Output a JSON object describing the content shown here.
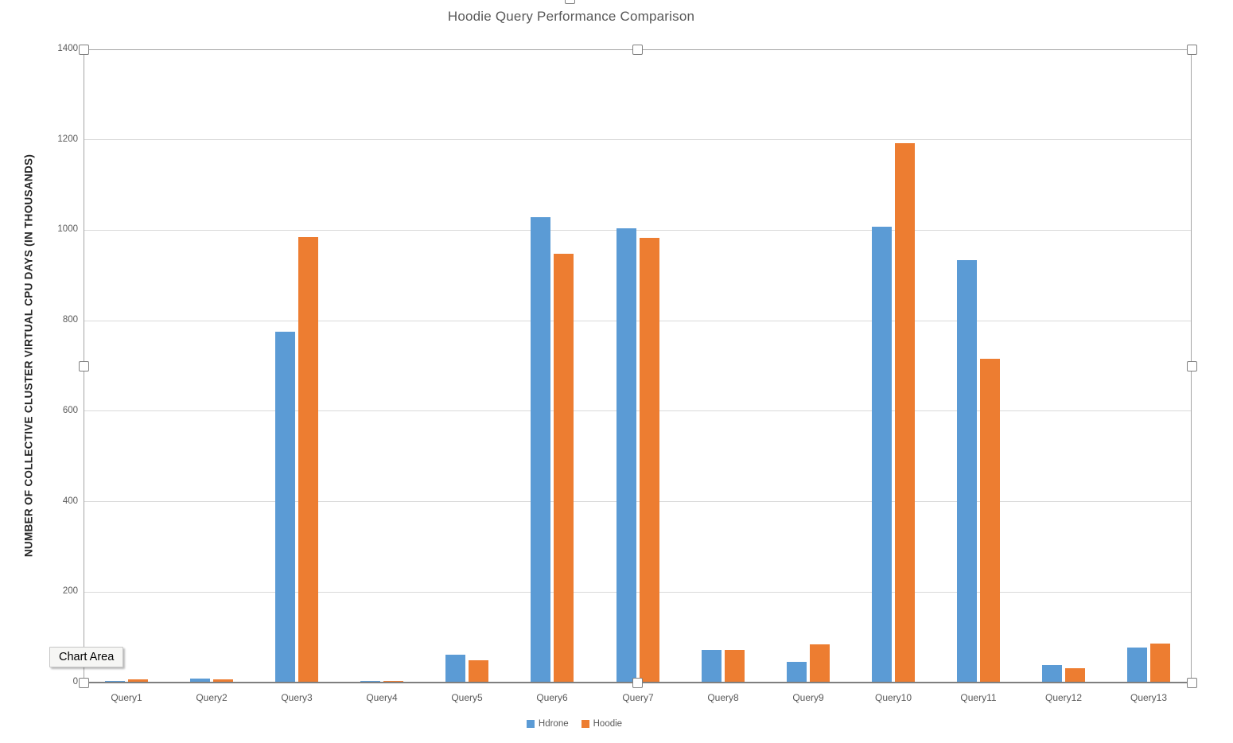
{
  "window": {
    "title": "Hoodie Query Performance Comparison"
  },
  "tooltip": {
    "label": "Chart Area"
  },
  "colors": {
    "series_blue": "#5B9BD5",
    "series_orange": "#ED7D31",
    "gridline": "#d9d9d9",
    "axis_line": "#7f7f7f",
    "text_gray": "#595959",
    "selection_border": "#a6a6a6"
  },
  "chart_data": {
    "type": "bar",
    "title": "Hoodie Query Performance Comparison",
    "xlabel": "",
    "ylabel": "NUMBER OF COLLECTIVE CLUSTER VIRTUAL CPU DAYS (IN THOUSANDS)",
    "categories": [
      "Query1",
      "Query2",
      "Query3",
      "Query4",
      "Query5",
      "Query6",
      "Query7",
      "Query8",
      "Query9",
      "Query10",
      "Query11",
      "Query12",
      "Query13"
    ],
    "series": [
      {
        "name": "Hdrone",
        "color": "#5B9BD5",
        "values": [
          4,
          8,
          775,
          3,
          62,
          1029,
          1004,
          72,
          46,
          1008,
          934,
          39,
          77
        ]
      },
      {
        "name": "Hoodie",
        "color": "#ED7D31",
        "values": [
          7,
          7,
          985,
          3,
          49,
          948,
          983,
          72,
          85,
          1192,
          715,
          32,
          86
        ]
      }
    ],
    "ylim": [
      0,
      1400
    ],
    "yticks": [
      0,
      200,
      400,
      600,
      800,
      1000,
      1200,
      1400
    ],
    "grid": true,
    "legend_position": "bottom",
    "selection": "plot-area-selected"
  }
}
